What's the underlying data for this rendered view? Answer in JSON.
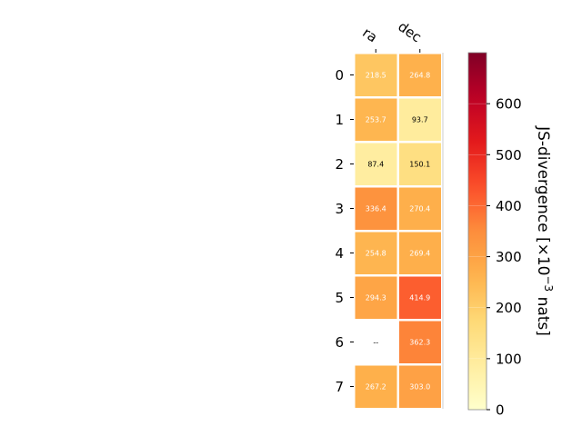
{
  "chart_data": {
    "type": "heatmap",
    "columns": [
      "ra",
      "dec"
    ],
    "rows": [
      "0",
      "1",
      "2",
      "3",
      "4",
      "5",
      "6",
      "7"
    ],
    "values": [
      [
        218.5,
        264.8
      ],
      [
        253.7,
        93.7
      ],
      [
        87.4,
        150.1
      ],
      [
        336.4,
        270.4
      ],
      [
        254.8,
        269.4
      ],
      [
        294.3,
        414.9
      ],
      [
        null,
        362.3
      ],
      [
        267.2,
        303.0
      ]
    ],
    "cell_labels": [
      [
        "218.5",
        "264.8"
      ],
      [
        "253.7",
        "93.7"
      ],
      [
        "87.4",
        "150.1"
      ],
      [
        "336.4",
        "270.4"
      ],
      [
        "254.8",
        "269.4"
      ],
      [
        "294.3",
        "414.9"
      ],
      [
        "--",
        "362.3"
      ],
      [
        "267.2",
        "303.0"
      ]
    ],
    "colorbar": {
      "label": "JS-divergence [×10",
      "label_exponent": "−3",
      "label_suffix": " nats]",
      "range": [
        0,
        700
      ],
      "ticks": [
        "0",
        "100",
        "200",
        "300",
        "400",
        "500",
        "600"
      ],
      "tick_values": [
        0,
        100,
        200,
        300,
        400,
        500,
        600
      ],
      "colormap": "YlOrRd"
    }
  }
}
